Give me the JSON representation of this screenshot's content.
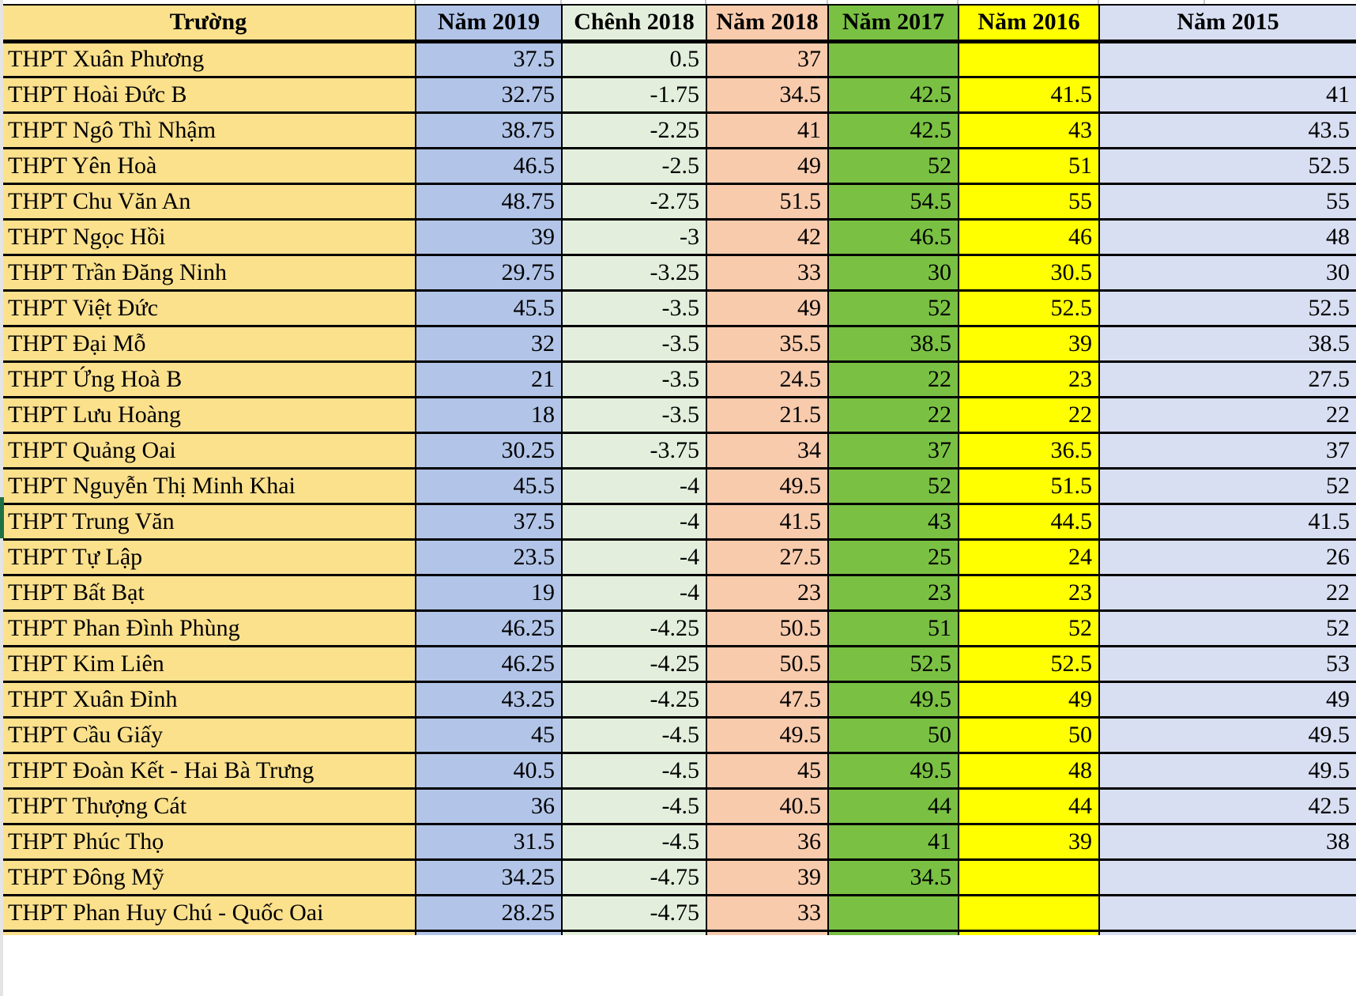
{
  "table": {
    "columns": [
      {
        "key": "school",
        "label": "Trường",
        "color": "#FCE18D"
      },
      {
        "key": "y2019",
        "label": "Năm 2019",
        "color": "#B2C5E8"
      },
      {
        "key": "diff2018",
        "label": "Chênh 2018",
        "color": "#E3EFDC"
      },
      {
        "key": "y2018",
        "label": "Năm 2018",
        "color": "#F8CBAD"
      },
      {
        "key": "y2017",
        "label": "Năm 2017",
        "color": "#7AC143"
      },
      {
        "key": "y2016",
        "label": "Năm 2016",
        "color": "#FFFF00"
      },
      {
        "key": "y2015",
        "label": "Năm 2015",
        "color": "#D9DFF2"
      }
    ],
    "rows": [
      {
        "school": "THPT Xuân Phương",
        "y2019": "37.5",
        "diff2018": "0.5",
        "y2018": "37",
        "y2017": "",
        "y2016": "",
        "y2015": ""
      },
      {
        "school": "THPT Hoài Đức B",
        "y2019": "32.75",
        "diff2018": "-1.75",
        "y2018": "34.5",
        "y2017": "42.5",
        "y2016": "41.5",
        "y2015": "41"
      },
      {
        "school": "THPT Ngô Thì Nhậm",
        "y2019": "38.75",
        "diff2018": "-2.25",
        "y2018": "41",
        "y2017": "42.5",
        "y2016": "43",
        "y2015": "43.5"
      },
      {
        "school": "THPT Yên Hoà",
        "y2019": "46.5",
        "diff2018": "-2.5",
        "y2018": "49",
        "y2017": "52",
        "y2016": "51",
        "y2015": "52.5"
      },
      {
        "school": "THPT Chu Văn An",
        "y2019": "48.75",
        "diff2018": "-2.75",
        "y2018": "51.5",
        "y2017": "54.5",
        "y2016": "55",
        "y2015": "55"
      },
      {
        "school": "THPT Ngọc Hồi",
        "y2019": "39",
        "diff2018": "-3",
        "y2018": "42",
        "y2017": "46.5",
        "y2016": "46",
        "y2015": "48"
      },
      {
        "school": "THPT Trần Đăng Ninh",
        "y2019": "29.75",
        "diff2018": "-3.25",
        "y2018": "33",
        "y2017": "30",
        "y2016": "30.5",
        "y2015": "30"
      },
      {
        "school": "THPT Việt Đức",
        "y2019": "45.5",
        "diff2018": "-3.5",
        "y2018": "49",
        "y2017": "52",
        "y2016": "52.5",
        "y2015": "52.5"
      },
      {
        "school": "THPT Đại Mỗ",
        "y2019": "32",
        "diff2018": "-3.5",
        "y2018": "35.5",
        "y2017": "38.5",
        "y2016": "39",
        "y2015": "38.5"
      },
      {
        "school": "THPT Ứng Hoà B",
        "y2019": "21",
        "diff2018": "-3.5",
        "y2018": "24.5",
        "y2017": "22",
        "y2016": "23",
        "y2015": "27.5"
      },
      {
        "school": "THPT Lưu Hoàng",
        "y2019": "18",
        "diff2018": "-3.5",
        "y2018": "21.5",
        "y2017": "22",
        "y2016": "22",
        "y2015": "22"
      },
      {
        "school": "THPT Quảng Oai",
        "y2019": "30.25",
        "diff2018": "-3.75",
        "y2018": "34",
        "y2017": "37",
        "y2016": "36.5",
        "y2015": "37"
      },
      {
        "school": "THPT Nguyễn Thị Minh Khai",
        "y2019": "45.5",
        "diff2018": "-4",
        "y2018": "49.5",
        "y2017": "52",
        "y2016": "51.5",
        "y2015": "52"
      },
      {
        "school": "THPT Trung Văn",
        "y2019": "37.5",
        "diff2018": "-4",
        "y2018": "41.5",
        "y2017": "43",
        "y2016": "44.5",
        "y2015": "41.5"
      },
      {
        "school": "THPT Tự Lập",
        "y2019": "23.5",
        "diff2018": "-4",
        "y2018": "27.5",
        "y2017": "25",
        "y2016": "24",
        "y2015": "26"
      },
      {
        "school": "THPT Bất Bạt",
        "y2019": "19",
        "diff2018": "-4",
        "y2018": "23",
        "y2017": "23",
        "y2016": "23",
        "y2015": "22"
      },
      {
        "school": "THPT Phan Đình Phùng",
        "y2019": "46.25",
        "diff2018": "-4.25",
        "y2018": "50.5",
        "y2017": "51",
        "y2016": "52",
        "y2015": "52"
      },
      {
        "school": "THPT Kim Liên",
        "y2019": "46.25",
        "diff2018": "-4.25",
        "y2018": "50.5",
        "y2017": "52.5",
        "y2016": "52.5",
        "y2015": "53"
      },
      {
        "school": "THPT Xuân Đỉnh",
        "y2019": "43.25",
        "diff2018": "-4.25",
        "y2018": "47.5",
        "y2017": "49.5",
        "y2016": "49",
        "y2015": "49"
      },
      {
        "school": "THPT Cầu Giấy",
        "y2019": "45",
        "diff2018": "-4.5",
        "y2018": "49.5",
        "y2017": "50",
        "y2016": "50",
        "y2015": "49.5"
      },
      {
        "school": "THPT Đoàn Kết - Hai Bà Trưng",
        "y2019": "40.5",
        "diff2018": "-4.5",
        "y2018": "45",
        "y2017": "49.5",
        "y2016": "48",
        "y2015": "49.5"
      },
      {
        "school": "THPT Thượng Cát",
        "y2019": "36",
        "diff2018": "-4.5",
        "y2018": "40.5",
        "y2017": "44",
        "y2016": "44",
        "y2015": "42.5"
      },
      {
        "school": "THPT Phúc Thọ",
        "y2019": "31.5",
        "diff2018": "-4.5",
        "y2018": "36",
        "y2017": "41",
        "y2016": "39",
        "y2015": "38"
      },
      {
        "school": "THPT Đông Mỹ",
        "y2019": "34.25",
        "diff2018": "-4.75",
        "y2018": "39",
        "y2017": "34.5",
        "y2016": "",
        "y2015": ""
      },
      {
        "school": "THPT Phan Huy Chú - Quốc Oai",
        "y2019": "28.25",
        "diff2018": "-4.75",
        "y2018": "33",
        "y2017": "",
        "y2016": "",
        "y2015": ""
      }
    ],
    "colors": {
      "grid_border": "#000000",
      "selection_green": "#1e7145",
      "sheet_edge_gray": "#e4e4e4"
    }
  }
}
